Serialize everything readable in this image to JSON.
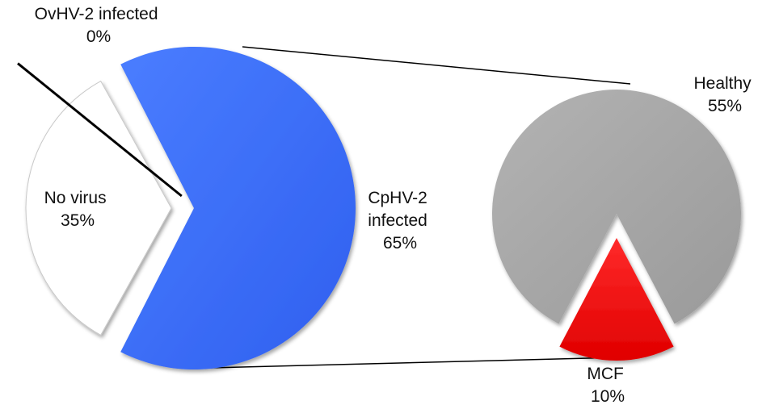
{
  "chart_data": [
    {
      "type": "pie",
      "slices": [
        {
          "id": "no-virus",
          "label_lines": [
            "No virus",
            "35%"
          ],
          "value": 35,
          "color": "#ffffff",
          "exploded": true
        },
        {
          "id": "ovhv2",
          "label_lines": [
            "OvHV-2 infected",
            "0%"
          ],
          "value": 0,
          "color": "#111111",
          "exploded": true
        },
        {
          "id": "cphv2",
          "label_lines": [
            "CpHV-2",
            "infected",
            "65%"
          ],
          "value": 65,
          "color": "#3366ff",
          "exploded": false
        }
      ]
    },
    {
      "type": "pie",
      "slices": [
        {
          "id": "healthy",
          "label_lines": [
            "Healthy",
            "55%"
          ],
          "value": 55,
          "color": "#a6a6a6",
          "exploded": false
        },
        {
          "id": "mcf",
          "label_lines": [
            "MCF",
            "10%"
          ],
          "value": 10,
          "color": "#ff0000",
          "exploded": true
        }
      ]
    }
  ]
}
